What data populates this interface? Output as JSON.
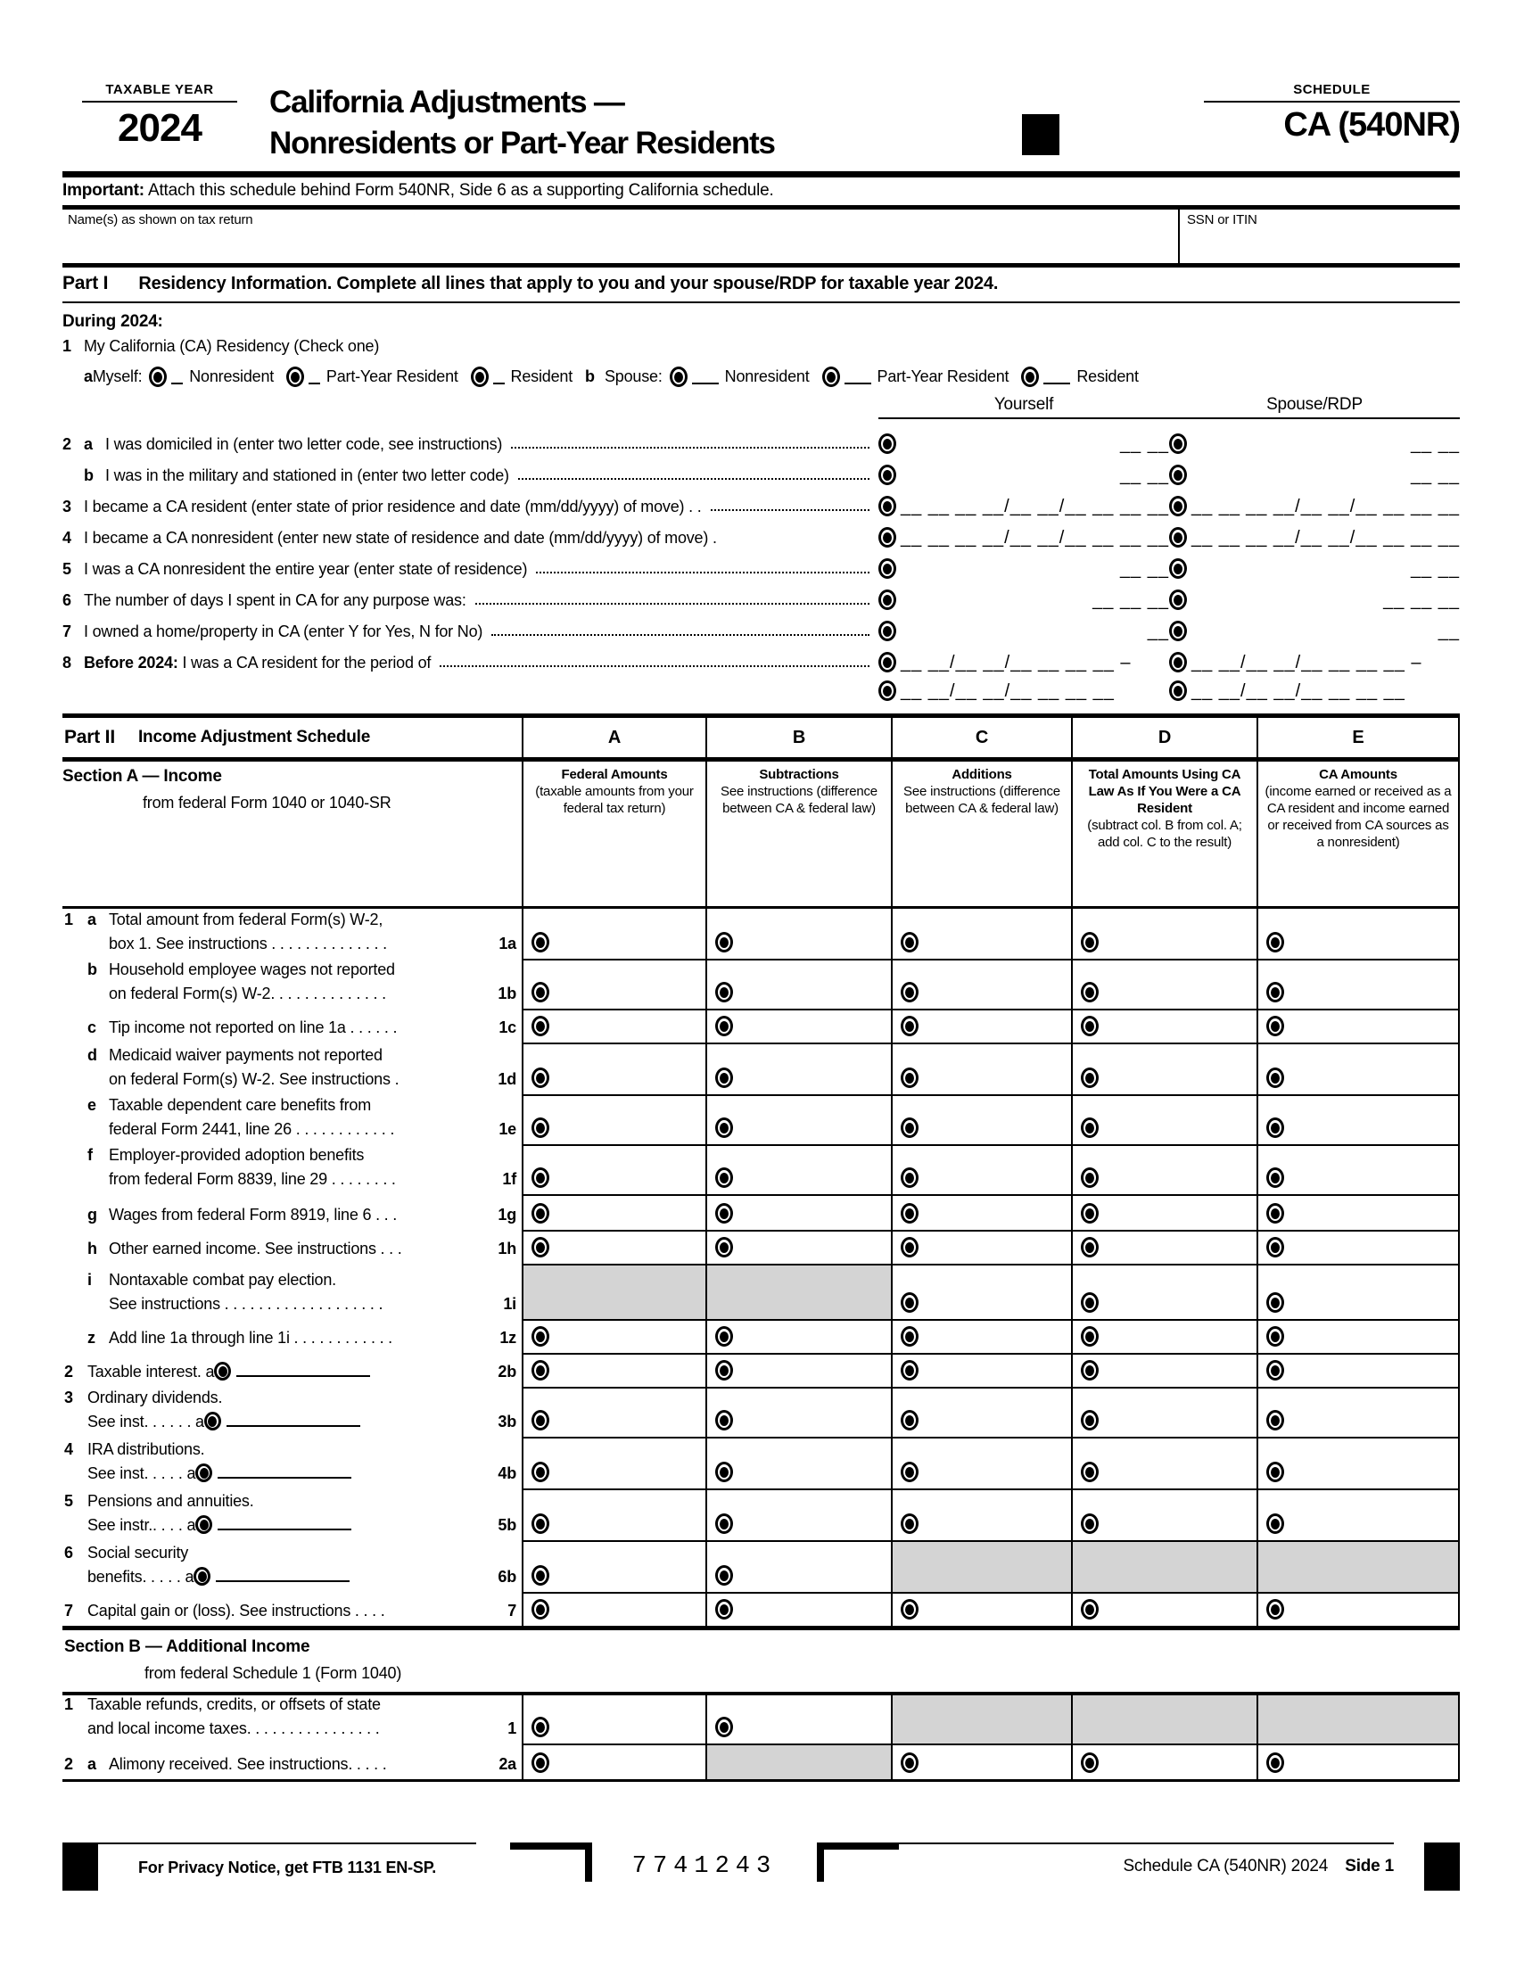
{
  "header": {
    "taxable_year_label": "TAXABLE YEAR",
    "year": "2024",
    "title_line1": "California Adjustments —",
    "title_line2": "Nonresidents or Part-Year Residents",
    "schedule_label": "SCHEDULE",
    "schedule_number": "CA (540NR)",
    "important_bold": "Important:",
    "important_rest": " Attach this schedule behind Form 540NR, Side 6 as a supporting California schedule."
  },
  "name_row": {
    "name_label": "Name(s) as shown on tax return",
    "ssn_label": "SSN or ITIN"
  },
  "part1": {
    "title_bold": "Part I",
    "title_rest": "Residency Information. Complete all lines that apply to you and your spouse/RDP for taxable year 2024.",
    "during": "During 2024:",
    "line1_num": "1",
    "line1_text": "My California (CA) Residency (Check one)",
    "myself": {
      "sub": "a",
      "label": "Myself:",
      "options": [
        "Nonresident",
        "Part-Year Resident",
        "Resident"
      ]
    },
    "spouse": {
      "sub": "b",
      "label": "Spouse:",
      "options": [
        "Nonresident",
        "Part-Year Resident",
        "Resident"
      ]
    },
    "col_yourself": "Yourself",
    "col_spouse": "Spouse/RDP",
    "rows": [
      {
        "num": "2",
        "sub": "a",
        "text": "I was domiciled in (enter two letter code, see instructions)",
        "near": "",
        "far": "__ __"
      },
      {
        "num": "",
        "sub": "b",
        "text": "I was in the military and stationed in (enter two letter code)",
        "near": "",
        "far": "__ __"
      },
      {
        "num": "3",
        "sub": "",
        "text": "I became a CA resident (enter state of prior residence and date (mm/dd/yyyy) of move)  . . ",
        "near": "__ __",
        "far": "__ __/__ __/__ __ __ __"
      },
      {
        "num": "4",
        "sub": "",
        "text": "I became a CA nonresident (enter new state of residence and date (mm/dd/yyyy) of move) .",
        "near": "__ __",
        "far": "__ __/__ __/__ __ __ __",
        "noleader": true
      },
      {
        "num": "5",
        "sub": "",
        "text": "I was a CA nonresident the entire year (enter state of residence)",
        "near": "",
        "far": "__ __"
      },
      {
        "num": "6",
        "sub": "",
        "text": "The number of days I spent in CA for any purpose was:",
        "near": "",
        "far": "__ __ __"
      },
      {
        "num": "7",
        "sub": "",
        "text": "I owned a home/property in CA (enter Y for Yes, N for No)",
        "near": "",
        "far": "__"
      },
      {
        "num": "8",
        "sub": "",
        "bold": "Before 2024:",
        "text": " I was a CA resident for the period of",
        "near": "__ __/__ __/__ __ __ __ –",
        "far": ""
      },
      {
        "num": "",
        "sub": "",
        "text": "",
        "near": "__ __/__ __/__ __ __ __",
        "far": "",
        "noleader": true,
        "short": true
      }
    ]
  },
  "part2": {
    "title_bold": "Part II",
    "title_rest": "Income Adjustment Schedule",
    "col_letters": [
      "A",
      "B",
      "C",
      "D",
      "E"
    ],
    "section_a_title": "Section A — Income",
    "section_a_sub": "from federal Form 1040 or 1040-SR",
    "col_heads": [
      {
        "bold": "Federal Amounts",
        "rest": "(taxable amounts from your federal tax return)"
      },
      {
        "bold": "Subtractions",
        "rest": "See instructions (difference between CA & federal law)"
      },
      {
        "bold": "Additions",
        "rest": "See instructions (difference between CA & federal law)"
      },
      {
        "bold": "Total Amounts Using CA Law As If You Were a CA Resident",
        "rest": "(subtract col. B from col. A; add col. C to the result)"
      },
      {
        "bold": "CA Amounts",
        "rest": "(income earned or received as a CA resident and income earned or received from CA sources as a nonresident)"
      }
    ],
    "rows": [
      {
        "h": 56,
        "num": "1",
        "sub": "a",
        "lines": [
          "Total amount from federal Form(s) W-2,",
          "box 1. See instructions . . . . . . . . . . . . . ."
        ],
        "code": "1a",
        "cells": [
          "r",
          "r",
          "r",
          "r",
          "r"
        ]
      },
      {
        "h": 56,
        "num": "",
        "sub": "b",
        "lines": [
          "Household employee wages not reported",
          "on federal Form(s) W-2. . . . . . . . . . . . . ."
        ],
        "code": "1b",
        "cells": [
          "r",
          "r",
          "r",
          "r",
          "r"
        ]
      },
      {
        "h": 38,
        "num": "",
        "sub": "c",
        "lines": [
          "Tip income not reported on line 1a . . . . . ."
        ],
        "code": "1c",
        "cells": [
          "r",
          "r",
          "r",
          "r",
          "r"
        ]
      },
      {
        "h": 58,
        "num": "",
        "sub": "d",
        "lines": [
          "Medicaid waiver payments not reported",
          "on federal Form(s) W-2. See instructions ."
        ],
        "code": "1d",
        "cells": [
          "r",
          "r",
          "r",
          "r",
          "r"
        ]
      },
      {
        "h": 56,
        "num": "",
        "sub": "e",
        "lines": [
          "Taxable dependent care benefits from",
          "federal Form 2441, line 26 . . . . . . . . . . . ."
        ],
        "code": "1e",
        "cells": [
          "r",
          "r",
          "r",
          "r",
          "r"
        ]
      },
      {
        "h": 56,
        "num": "",
        "sub": "f",
        "lines": [
          "Employer-provided adoption benefits",
          "from federal Form 8839, line 29 . . . . . . . ."
        ],
        "code": "1f",
        "cells": [
          "r",
          "r",
          "r",
          "r",
          "r"
        ]
      },
      {
        "h": 40,
        "num": "",
        "sub": "g",
        "lines": [
          "Wages from federal Form 8919, line 6  . . ."
        ],
        "code": "1g",
        "cells": [
          "r",
          "r",
          "r",
          "r",
          "r"
        ]
      },
      {
        "h": 38,
        "num": "",
        "sub": "h",
        "lines": [
          "Other earned income. See instructions . . ."
        ],
        "code": "1h",
        "cells": [
          "r",
          "r",
          "r",
          "r",
          "r"
        ]
      },
      {
        "h": 62,
        "num": "",
        "sub": "i",
        "lines": [
          "Nontaxable combat pay election.",
          "See instructions . . . . . . . . . . . . . . . . . . ."
        ],
        "code": "1i",
        "cells": [
          "g",
          "g",
          "r",
          "r",
          "r"
        ]
      },
      {
        "h": 38,
        "num": "",
        "sub": "z",
        "lines": [
          "Add line 1a through line 1i . . . . . . . . . . . ."
        ],
        "code": "1z",
        "cells": [
          "r",
          "r",
          "r",
          "r",
          "r"
        ]
      },
      {
        "h": 38,
        "num": "2",
        "sub": "",
        "lines": [
          "Taxable interest. a{r}{u}"
        ],
        "code": "2b",
        "cells": [
          "r",
          "r",
          "r",
          "r",
          "r"
        ]
      },
      {
        "h": 56,
        "num": "3",
        "sub": "",
        "lines": [
          "Ordinary dividends.",
          "See inst. . . . . . a{r}{u}"
        ],
        "code": "3b",
        "cells": [
          "r",
          "r",
          "r",
          "r",
          "r"
        ]
      },
      {
        "h": 58,
        "num": "4",
        "sub": "",
        "lines": [
          "IRA distributions.",
          "See inst. . . . .  a{r}{u}"
        ],
        "code": "4b",
        "cells": [
          "r",
          "r",
          "r",
          "r",
          "r"
        ]
      },
      {
        "h": 58,
        "num": "5",
        "sub": "",
        "lines": [
          "Pensions and annuities.",
          "See instr.. . . .  a{r}{u}"
        ],
        "code": "5b",
        "cells": [
          "r",
          "r",
          "r",
          "r",
          "r"
        ]
      },
      {
        "h": 58,
        "num": "6",
        "sub": "",
        "lines": [
          "Social security",
          "benefits. . . . .  a{r}{u}"
        ],
        "code": "6b",
        "cells": [
          "r",
          "r",
          "g",
          "g",
          "g"
        ]
      },
      {
        "h": 38,
        "num": "7",
        "sub": "",
        "lines": [
          "Capital gain or (loss). See instructions  . . . ."
        ],
        "code": "7",
        "cells": [
          "r",
          "r",
          "r",
          "r",
          "r"
        ]
      }
    ],
    "section_b_title": "Section B — Additional Income",
    "section_b_sub": "from federal Schedule 1 (Form 1040)",
    "rows_b": [
      {
        "h": 54,
        "num": "1",
        "sub": "",
        "lines": [
          "Taxable refunds, credits, or offsets of state",
          "and local income taxes. . . . . . . . . . . . . . . ."
        ],
        "code": "1",
        "cells": [
          "r",
          "r",
          "g",
          "g",
          "g"
        ]
      },
      {
        "h": 40,
        "num": "2",
        "sub": "a",
        "lines": [
          "Alimony received. See instructions. . . . ."
        ],
        "code": "2a",
        "cells": [
          "r",
          "g",
          "r",
          "r",
          "r"
        ]
      }
    ]
  },
  "footer": {
    "privacy_notice": "For Privacy Notice, get FTB 1131 EN-SP.",
    "form_number": "7741243",
    "schedule_label": "Schedule CA (540NR)  2024",
    "side_label": "Side 1"
  },
  "colors": {
    "shaded_cell": "#d4d4d4",
    "ink": "#000000"
  }
}
